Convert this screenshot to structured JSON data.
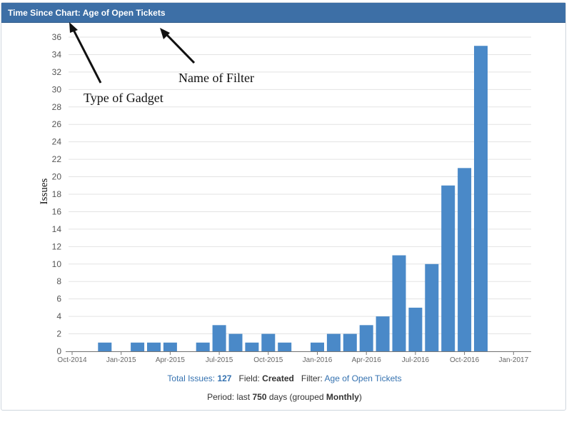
{
  "gadget": {
    "title": "Time Since Chart: Age of Open Tickets"
  },
  "annotations": {
    "type_of_gadget": "Type of Gadget",
    "name_of_filter": "Name of Filter"
  },
  "footer": {
    "total_issues_label": "Total Issues:",
    "total_issues_value": "127",
    "field_label": "Field:",
    "field_value": "Created",
    "filter_label": "Filter:",
    "filter_value": "Age of Open Tickets",
    "period_prefix": "Period: last",
    "period_days": "750",
    "period_days_suffix": "days (grouped",
    "period_grouping": "Monthly",
    "period_close": ")"
  },
  "chart_data": {
    "type": "bar",
    "ylabel": "Issues",
    "xlabel": "",
    "ylim": [
      0,
      36
    ],
    "yticks": [
      0,
      2,
      4,
      6,
      8,
      10,
      12,
      14,
      16,
      18,
      20,
      22,
      24,
      26,
      28,
      30,
      32,
      34,
      36
    ],
    "grid": true,
    "x_ticks": [
      "Oct-2014",
      "Jan-2015",
      "Apr-2015",
      "Jul-2015",
      "Oct-2015",
      "Jan-2016",
      "Apr-2016",
      "Jul-2016",
      "Oct-2016",
      "Jan-2017"
    ],
    "categories": [
      "Dec-2014",
      "Jan-2015",
      "Feb-2015",
      "Mar-2015",
      "Apr-2015",
      "May-2015",
      "Jun-2015",
      "Jul-2015",
      "Aug-2015",
      "Sep-2015",
      "Oct-2015",
      "Nov-2015",
      "Dec-2015",
      "Jan-2016",
      "Feb-2016",
      "Mar-2016",
      "Apr-2016",
      "May-2016",
      "Jun-2016",
      "Jul-2016",
      "Aug-2016",
      "Sep-2016",
      "Oct-2016",
      "Nov-2016"
    ],
    "values": [
      1,
      0,
      1,
      1,
      1,
      0,
      1,
      3,
      2,
      1,
      2,
      1,
      0,
      1,
      2,
      2,
      3,
      4,
      11,
      5,
      10,
      19,
      21,
      35
    ],
    "color": "#4a89c8"
  }
}
